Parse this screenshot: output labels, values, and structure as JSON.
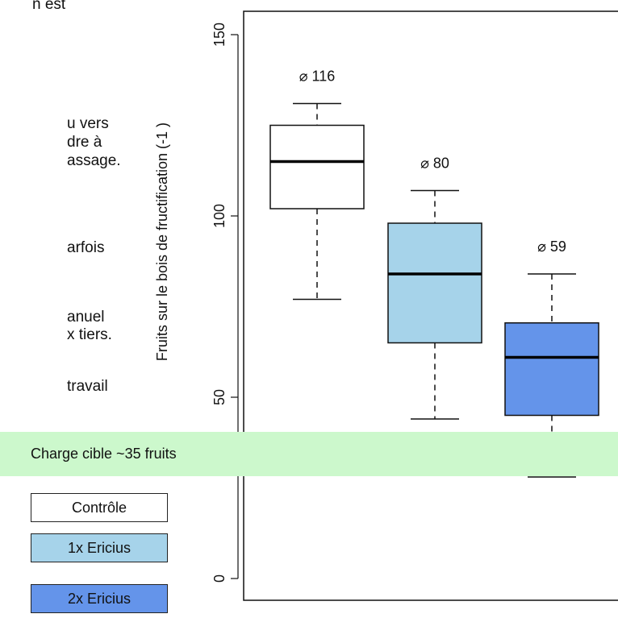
{
  "left_text": [
    {
      "text": "n est"
    },
    {
      "text": "u vers"
    },
    {
      "text": "dre à"
    },
    {
      "text": "assage."
    },
    {
      "text": "arfois"
    },
    {
      "text": "anuel"
    },
    {
      "text": "x tiers."
    },
    {
      "text": "travail"
    }
  ],
  "band": {
    "label": "Charge cible ~35 fruits",
    "color": "#ccf8cc"
  },
  "legend": [
    {
      "label": "Contrôle",
      "color": "#ffffff"
    },
    {
      "label": "1x Ericius",
      "color": "#a6d3ea"
    },
    {
      "label": "2x Ericius",
      "color": "#6494ea"
    }
  ],
  "chart_data": {
    "type": "box",
    "ylabel": "Fruits sur le bois de fructification (-1 )",
    "ylim": [
      0,
      150
    ],
    "yticks": [
      0,
      50,
      100,
      150
    ],
    "grid": false,
    "series": [
      {
        "group": "Contrôle",
        "color": "#ffffff",
        "whisker_low": 77,
        "q1": 102,
        "median": 115,
        "q3": 125,
        "whisker_high": 131,
        "mean_label": "⌀ 116"
      },
      {
        "group": "1x Ericius",
        "color": "#a6d3ea",
        "whisker_low": 44,
        "q1": 65,
        "median": 84,
        "q3": 98,
        "whisker_high": 107,
        "mean_label": "⌀ 80"
      },
      {
        "group": "2x Ericius",
        "color": "#6494ea",
        "whisker_low": 28,
        "q1": 45,
        "median": 61,
        "q3": 70.5,
        "whisker_high": 84,
        "mean_label": "⌀ 59"
      }
    ]
  }
}
